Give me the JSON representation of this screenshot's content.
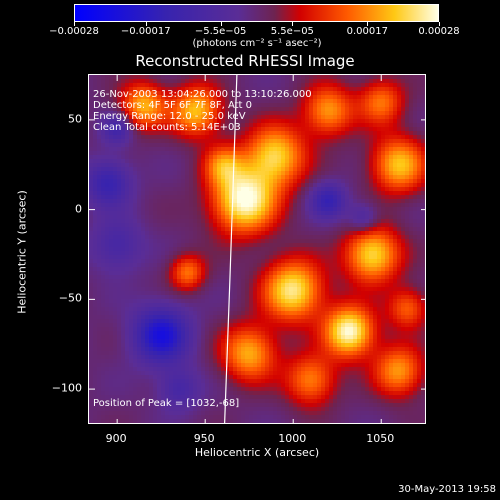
{
  "chart_data": {
    "type": "heatmap",
    "title": "Reconstructed RHESSI Image",
    "xlabel": "Heliocentric X (arcsec)",
    "ylabel": "Heliocentric Y (arcsec)",
    "xlim": [
      884,
      1076
    ],
    "ylim": [
      -120,
      75
    ],
    "x_ticks": [
      900,
      950,
      1000,
      1050
    ],
    "y_ticks": [
      50,
      0,
      -50,
      -100
    ],
    "x_tick_labels": [
      "900",
      "950",
      "1000",
      "1050"
    ],
    "y_tick_labels": [
      "50",
      "0",
      "−50",
      "−100"
    ],
    "colorbar": {
      "range": [
        -0.00028,
        0.00028
      ],
      "ticks": [
        -0.00028,
        -0.00017,
        -5.5e-05,
        5.5e-05,
        0.00017,
        0.00028
      ],
      "tick_labels": [
        "−0.00028",
        "−0.00017",
        "−5.5e−05",
        "5.5e−05",
        "0.00017",
        "0.00028"
      ],
      "units": "(photons cm⁻² s⁻¹ asec⁻²)"
    },
    "annotations": {
      "time_range": "26-Nov-2003 13:04:26.000 to 13:10:26.000",
      "detectors": "Detectors: 4F 5F 6F 7F 8F, Att 0",
      "energy_range": "Energy Range: 12.0 - 25.0 keV",
      "method_counts": "Clean    Total counts: 5.14E+03",
      "peak_position": "Position of Peak = [1032,-68]"
    },
    "limb_line": [
      [
        968,
        75
      ],
      [
        964,
        -40
      ],
      [
        961,
        -120
      ]
    ],
    "blobs": [
      {
        "x": 972,
        "y": 5,
        "amp": 1.0,
        "sigma": 13
      },
      {
        "x": 1032,
        "y": -68,
        "amp": 1.0,
        "sigma": 10
      },
      {
        "x": 1000,
        "y": -45,
        "amp": 0.9,
        "sigma": 12
      },
      {
        "x": 1045,
        "y": -25,
        "amp": 0.85,
        "sigma": 11
      },
      {
        "x": 990,
        "y": 30,
        "amp": 0.8,
        "sigma": 12
      },
      {
        "x": 1060,
        "y": 25,
        "amp": 0.75,
        "sigma": 11
      },
      {
        "x": 1020,
        "y": 55,
        "amp": 0.65,
        "sigma": 10
      },
      {
        "x": 945,
        "y": 55,
        "amp": 0.75,
        "sigma": 10
      },
      {
        "x": 915,
        "y": 58,
        "amp": 0.7,
        "sigma": 9
      },
      {
        "x": 975,
        "y": -80,
        "amp": 0.7,
        "sigma": 11
      },
      {
        "x": 1010,
        "y": -95,
        "amp": 0.6,
        "sigma": 10
      },
      {
        "x": 1060,
        "y": -90,
        "amp": 0.65,
        "sigma": 10
      },
      {
        "x": 1050,
        "y": 60,
        "amp": 0.55,
        "sigma": 9
      },
      {
        "x": 940,
        "y": -35,
        "amp": 0.55,
        "sigma": 7
      },
      {
        "x": 960,
        "y": 25,
        "amp": 0.5,
        "sigma": 8
      },
      {
        "x": 1065,
        "y": -55,
        "amp": 0.5,
        "sigma": 8
      },
      {
        "x": 925,
        "y": -70,
        "amp": -0.75,
        "sigma": 11
      },
      {
        "x": 895,
        "y": 15,
        "amp": -0.5,
        "sigma": 9
      },
      {
        "x": 1020,
        "y": 5,
        "amp": -0.5,
        "sigma": 7
      },
      {
        "x": 1040,
        "y": -5,
        "amp": -0.35,
        "sigma": 6
      },
      {
        "x": 900,
        "y": 45,
        "amp": -0.4,
        "sigma": 6
      },
      {
        "x": 935,
        "y": -100,
        "amp": -0.35,
        "sigma": 8
      },
      {
        "x": 900,
        "y": -20,
        "amp": -0.35,
        "sigma": 10
      }
    ]
  }
}
